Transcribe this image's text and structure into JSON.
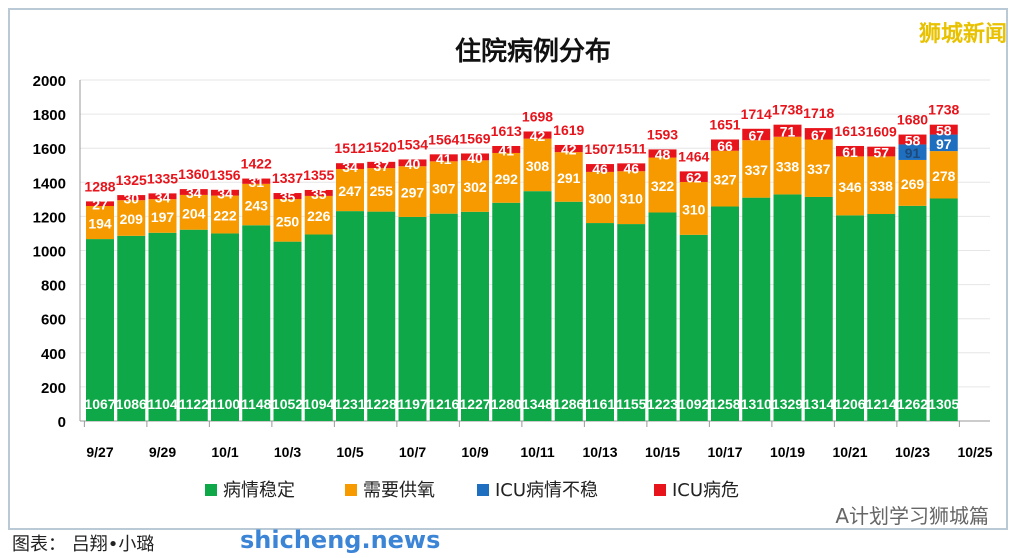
{
  "brand": "狮城新闻",
  "credit": "图表： 吕翔•小璐",
  "watermark": "shicheng.news",
  "wechat": "A计划学习狮城篇",
  "colors": {
    "stable": "#0fa848",
    "oxygen": "#f79a00",
    "icu_unstable": "#1f6fc0",
    "icu_critical": "#e8141c",
    "total": "#e8141c"
  },
  "chart_data": {
    "type": "bar",
    "stacked": true,
    "title": "住院病例分布",
    "categories": [
      "9/27",
      "9/28",
      "9/29",
      "9/30",
      "10/1",
      "10/2",
      "10/3",
      "10/4",
      "10/5",
      "10/6",
      "10/7",
      "10/8",
      "10/9",
      "10/10",
      "10/11",
      "10/12",
      "10/13",
      "10/14",
      "10/15",
      "10/16",
      "10/17",
      "10/18",
      "10/19",
      "10/20",
      "10/21",
      "10/22",
      "10/23",
      "10/24"
    ],
    "xticks": [
      "9/27",
      "9/29",
      "10/1",
      "10/3",
      "10/5",
      "10/7",
      "10/9",
      "10/11",
      "10/13",
      "10/15",
      "10/17",
      "10/19",
      "10/21",
      "10/23",
      "10/25"
    ],
    "yticks": [
      0,
      200,
      400,
      600,
      800,
      1000,
      1200,
      1400,
      1600,
      1800,
      2000
    ],
    "ylim": [
      0,
      2000
    ],
    "grid": true,
    "legend": "bottom",
    "series": [
      {
        "name": "病情稳定",
        "values": [
          1067,
          1086,
          1104,
          1122,
          1100,
          1148,
          1052,
          1094,
          1231,
          1228,
          1197,
          1216,
          1227,
          1280,
          1348,
          1286,
          1161,
          1155,
          1223,
          1092,
          1258,
          1310,
          1329,
          1314,
          1206,
          1214,
          1262,
          1305
        ]
      },
      {
        "name": "需要供氧",
        "values": [
          194,
          209,
          197,
          204,
          222,
          243,
          250,
          226,
          247,
          255,
          297,
          307,
          302,
          292,
          308,
          291,
          300,
          310,
          322,
          310,
          327,
          337,
          338,
          337,
          346,
          338,
          269,
          278
        ]
      },
      {
        "name": "ICU病情不稳",
        "values": [
          0,
          0,
          0,
          0,
          0,
          0,
          0,
          0,
          0,
          0,
          0,
          0,
          0,
          0,
          0,
          0,
          0,
          0,
          0,
          0,
          0,
          0,
          0,
          0,
          0,
          0,
          91,
          97
        ]
      },
      {
        "name": "ICU病危",
        "values": [
          27,
          30,
          34,
          34,
          34,
          31,
          35,
          35,
          34,
          37,
          40,
          41,
          40,
          41,
          42,
          42,
          46,
          46,
          48,
          62,
          66,
          67,
          71,
          67,
          61,
          57,
          58,
          58
        ]
      }
    ],
    "totals": [
      1288,
      1325,
      1335,
      1360,
      1356,
      1422,
      1337,
      1355,
      1512,
      1520,
      1534,
      1564,
      1569,
      1613,
      1698,
      1619,
      1507,
      1511,
      1593,
      1464,
      1651,
      1714,
      1738,
      1718,
      1613,
      1609,
      1680,
      1738
    ]
  }
}
